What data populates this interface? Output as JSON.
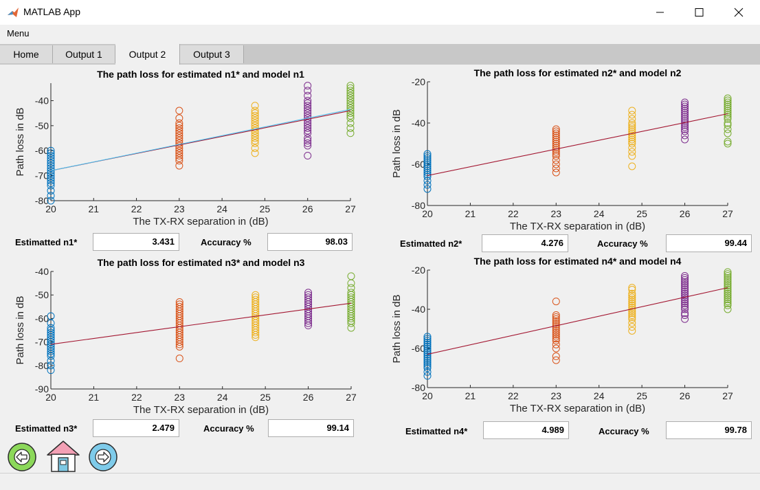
{
  "window": {
    "title": "MATLAB App"
  },
  "menu": {
    "label": "Menu"
  },
  "tabs": [
    {
      "label": "Home",
      "active": false
    },
    {
      "label": "Output 1",
      "active": false
    },
    {
      "label": "Output 2",
      "active": true
    },
    {
      "label": "Output 3",
      "active": false
    }
  ],
  "panels": [
    {
      "label": "Estimatted n1*",
      "value": "3.431",
      "accuracy_label": "Accuracy %",
      "accuracy": "98.03"
    },
    {
      "label": "Estimatted n2*",
      "value": "4.276",
      "accuracy_label": "Accuracy %",
      "accuracy": "99.44"
    },
    {
      "label": "Estimatted n3*",
      "value": "2.479",
      "accuracy_label": "Accuracy %",
      "accuracy": "99.14"
    },
    {
      "label": "Estimatted n4*",
      "value": "4.989",
      "accuracy_label": "Accuracy %",
      "accuracy": "99.78"
    }
  ],
  "colors": {
    "series": [
      "#0072bd",
      "#d95319",
      "#edb120",
      "#7e2f8e",
      "#77ac30"
    ],
    "model_line": "#a2142f",
    "estimate_line": "#4dbeee"
  },
  "nav": {
    "back_icon": "arrow-left-icon",
    "home_icon": "home-icon",
    "forward_icon": "arrow-right-icon"
  },
  "chart_data": [
    {
      "type": "scatter",
      "title": "The path loss for estimated n1* and model n1",
      "xlabel": "The TX-RX separation  in (dB)",
      "ylabel": "Path loss in dB",
      "xlim": [
        20,
        27
      ],
      "ylim": [
        -80,
        -33
      ],
      "xticks": [
        20,
        21,
        22,
        23,
        24,
        25,
        26,
        27
      ],
      "yticks": [
        -80,
        -70,
        -60,
        -50,
        -40
      ],
      "groups": [
        {
          "x": 20,
          "y": [
            -80,
            -78,
            -76,
            -74,
            -73,
            -72,
            -71,
            -70,
            -69,
            -68,
            -67,
            -66,
            -65,
            -64,
            -63,
            -62,
            -61,
            -60
          ]
        },
        {
          "x": 23,
          "y": [
            -66,
            -64,
            -63,
            -62,
            -61,
            -60,
            -59,
            -58,
            -57,
            -56,
            -55,
            -54,
            -53,
            -52,
            -51,
            -50,
            -49,
            -47,
            -44
          ]
        },
        {
          "x": 24.77,
          "y": [
            -61,
            -59,
            -57,
            -56,
            -55,
            -54,
            -53,
            -52,
            -51,
            -50,
            -49,
            -48,
            -47,
            -46,
            -45,
            -44,
            -42
          ]
        },
        {
          "x": 26,
          "y": [
            -62,
            -58,
            -57,
            -56,
            -55,
            -53,
            -52,
            -51,
            -50,
            -49,
            -48,
            -47,
            -46,
            -45,
            -44,
            -43,
            -42,
            -41,
            -40,
            -38,
            -36,
            -34
          ]
        },
        {
          "x": 27,
          "y": [
            -53,
            -51,
            -49,
            -47,
            -46,
            -45,
            -44,
            -43,
            -42,
            -41,
            -40,
            -39,
            -38,
            -37,
            -36,
            -35,
            -34
          ]
        }
      ],
      "lines": [
        {
          "role": "model",
          "x": [
            20,
            27
          ],
          "y": [
            -68,
            -44
          ]
        },
        {
          "role": "estimate",
          "x": [
            20,
            27
          ],
          "y": [
            -68,
            -43.5
          ]
        }
      ]
    },
    {
      "type": "scatter",
      "title": "The path loss for estimated n2* and model n2",
      "xlabel": "The TX-RX separation  in (dB)",
      "ylabel": "Path loss in dB",
      "xlim": [
        20,
        27
      ],
      "ylim": [
        -80,
        -20
      ],
      "xticks": [
        20,
        21,
        22,
        23,
        24,
        25,
        26,
        27
      ],
      "yticks": [
        -80,
        -60,
        -40,
        -20
      ],
      "groups": [
        {
          "x": 20,
          "y": [
            -72,
            -70,
            -68,
            -66,
            -65,
            -64,
            -63,
            -62,
            -61,
            -60,
            -59,
            -58,
            -57,
            -56,
            -55
          ]
        },
        {
          "x": 23,
          "y": [
            -64,
            -62,
            -60,
            -58,
            -56,
            -55,
            -54,
            -53,
            -52,
            -51,
            -50,
            -49,
            -48,
            -47,
            -46,
            -45,
            -44,
            -43
          ]
        },
        {
          "x": 24.77,
          "y": [
            -61,
            -56,
            -54,
            -52,
            -50,
            -49,
            -48,
            -47,
            -46,
            -45,
            -44,
            -43,
            -42,
            -41,
            -40,
            -38,
            -36,
            -34
          ]
        },
        {
          "x": 26,
          "y": [
            -48,
            -46,
            -44,
            -43,
            -42,
            -41,
            -40,
            -39,
            -38,
            -37,
            -36,
            -35,
            -34,
            -33,
            -32,
            -31,
            -30
          ]
        },
        {
          "x": 27,
          "y": [
            -50,
            -49,
            -45,
            -43,
            -41,
            -40,
            -38,
            -37,
            -36,
            -35,
            -34,
            -33,
            -32,
            -31,
            -30,
            -29,
            -28
          ]
        }
      ],
      "lines": [
        {
          "role": "model",
          "x": [
            20,
            27
          ],
          "y": [
            -65.5,
            -35.5
          ]
        }
      ]
    },
    {
      "type": "scatter",
      "title": "The path loss for estimated n3* and model n3",
      "xlabel": "The TX-RX separation  in (dB)",
      "ylabel": "Path loss in dB",
      "xlim": [
        20,
        27
      ],
      "ylim": [
        -90,
        -40
      ],
      "xticks": [
        20,
        21,
        22,
        23,
        24,
        25,
        26,
        27
      ],
      "yticks": [
        -90,
        -80,
        -70,
        -60,
        -50,
        -40
      ],
      "groups": [
        {
          "x": 20,
          "y": [
            -82,
            -80,
            -78,
            -76,
            -75,
            -74,
            -73,
            -72,
            -71,
            -70,
            -69,
            -68,
            -67,
            -66,
            -65,
            -64,
            -62,
            -59
          ]
        },
        {
          "x": 23,
          "y": [
            -77,
            -72,
            -71,
            -70,
            -69,
            -68,
            -67,
            -66,
            -65,
            -64,
            -63,
            -62,
            -61,
            -60,
            -59,
            -58,
            -57,
            -56,
            -55,
            -54,
            -53
          ]
        },
        {
          "x": 24.77,
          "y": [
            -68,
            -67,
            -66,
            -65,
            -64,
            -63,
            -62,
            -61,
            -60,
            -59,
            -58,
            -57,
            -56,
            -55,
            -54,
            -53,
            -52,
            -51,
            -50
          ]
        },
        {
          "x": 26,
          "y": [
            -63,
            -62,
            -61,
            -60,
            -59,
            -58,
            -57,
            -56,
            -55,
            -54,
            -53,
            -52,
            -51,
            -50,
            -49
          ]
        },
        {
          "x": 27,
          "y": [
            -64,
            -62,
            -61,
            -60,
            -59,
            -58,
            -57,
            -56,
            -55,
            -54,
            -53,
            -52,
            -51,
            -50,
            -49,
            -47,
            -45,
            -42
          ]
        }
      ],
      "lines": [
        {
          "role": "model",
          "x": [
            20,
            27
          ],
          "y": [
            -71,
            -53.5
          ]
        }
      ]
    },
    {
      "type": "scatter",
      "title": "The path loss for estimated n4* and model n4",
      "xlabel": "The TX-RX separation  in (dB)",
      "ylabel": "Path loss in dB",
      "xlim": [
        20,
        27
      ],
      "ylim": [
        -80,
        -20
      ],
      "xticks": [
        20,
        21,
        22,
        23,
        24,
        25,
        26,
        27
      ],
      "yticks": [
        -80,
        -60,
        -40,
        -20
      ],
      "groups": [
        {
          "x": 20,
          "y": [
            -74,
            -72,
            -70,
            -69,
            -68,
            -67,
            -66,
            -65,
            -64,
            -63,
            -62,
            -61,
            -60,
            -59,
            -58,
            -57,
            -56,
            -55,
            -54
          ]
        },
        {
          "x": 23,
          "y": [
            -66,
            -64,
            -60,
            -58,
            -56,
            -55,
            -54,
            -53,
            -52,
            -51,
            -50,
            -49,
            -48,
            -47,
            -46,
            -45,
            -44,
            -43,
            -36
          ]
        },
        {
          "x": 24.77,
          "y": [
            -51,
            -49,
            -47,
            -45,
            -44,
            -43,
            -42,
            -41,
            -40,
            -39,
            -38,
            -37,
            -36,
            -35,
            -34,
            -33,
            -32,
            -30,
            -29
          ]
        },
        {
          "x": 26,
          "y": [
            -45,
            -43,
            -42,
            -40,
            -39,
            -38,
            -37,
            -36,
            -35,
            -34,
            -33,
            -32,
            -31,
            -30,
            -29,
            -28,
            -27,
            -26,
            -25,
            -24,
            -23
          ]
        },
        {
          "x": 27,
          "y": [
            -40,
            -38,
            -37,
            -36,
            -35,
            -34,
            -33,
            -32,
            -31,
            -30,
            -29,
            -28,
            -27,
            -26,
            -25,
            -24,
            -23,
            -22,
            -21
          ]
        }
      ],
      "lines": [
        {
          "role": "model",
          "x": [
            20,
            27
          ],
          "y": [
            -63,
            -29
          ]
        }
      ]
    }
  ]
}
